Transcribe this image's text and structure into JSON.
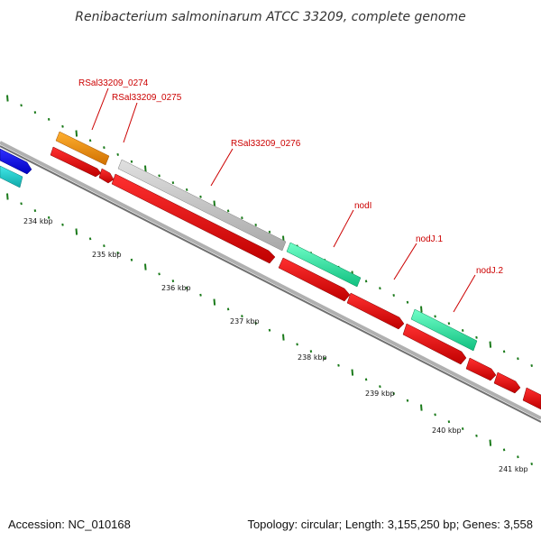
{
  "title": "Renibacterium salmoninarum ATCC 33209, complete genome",
  "footer": {
    "accession": "Accession: NC_010168",
    "summary": "Topology: circular; Length: 3,155,250 bp; Genes: 3,558"
  },
  "scale_ticks": [
    "234 kbp",
    "235 kbp",
    "236 kbp",
    "237 kbp",
    "238 kbp",
    "239 kbp",
    "240 kbp",
    "241 kbp"
  ],
  "gene_labels": [
    "RSal33209_0274",
    "RSal33209_0275",
    "RSal33209_0276",
    "nodI",
    "nodJ.1",
    "nodJ.2"
  ],
  "colors": {
    "backbone": "#808080",
    "cds": "#e00000",
    "gene_blue": "#1010e0",
    "gene_cyan": "#20c8c8",
    "gene_orange": "#f09000",
    "gene_grey": "#c0c0c0",
    "gene_green": "#30e8a0",
    "tick": "#1a7a1a",
    "label": "#cc0000"
  }
}
